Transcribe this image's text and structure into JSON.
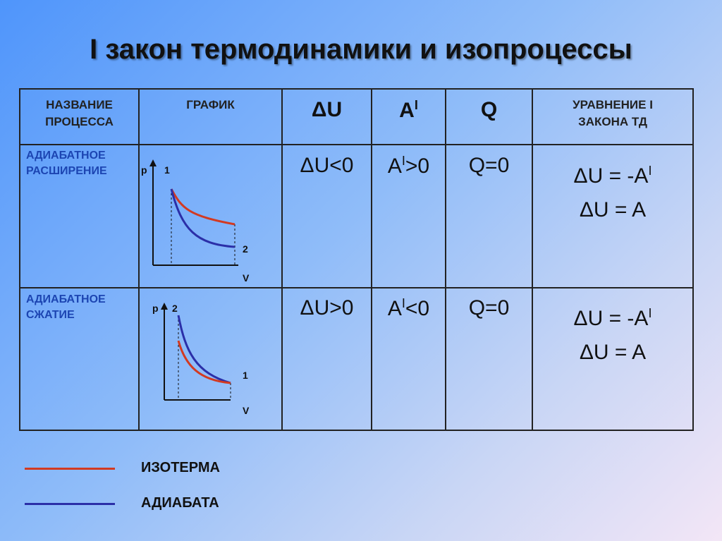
{
  "title": "I закон термодинамики и изопроцессы",
  "table": {
    "header": [
      [
        "НАЗВАНИЕ",
        "ПРОЦЕССА"
      ],
      "ГРАФИК",
      "ΔU",
      {
        "text": "A",
        "sup": "I"
      },
      "Q",
      [
        "УРАВНЕНИЕ I",
        "ЗАКОНА ТД"
      ]
    ],
    "rows": [
      {
        "name": [
          "АДИАБАТНОЕ",
          "РАСШИРЕНИЕ"
        ],
        "graph": {
          "p": "p",
          "start": "1",
          "end": "2",
          "v": "V"
        },
        "du": "ΔU<0",
        "a": {
          "text": "A",
          "sup": "I",
          "after": ">0"
        },
        "q": "Q=0",
        "equation": [
          {
            "text": "ΔU = -A",
            "sup": "I"
          },
          "ΔU = A"
        ]
      },
      {
        "name": [
          "АДИАБАТНОЕ",
          "СЖАТИЕ"
        ],
        "graph": {
          "p": "p",
          "start": "2",
          "end": "1",
          "v": "V"
        },
        "du": "ΔU>0",
        "a": {
          "text": "A",
          "sup": "I",
          "after": "<0"
        },
        "q": "Q=0",
        "equation": [
          {
            "text": "ΔU = -A",
            "sup": "I"
          },
          "ΔU = A"
        ]
      }
    ]
  },
  "legend": [
    "ИЗОТЕРМА",
    "АДИАБАТА"
  ]
}
